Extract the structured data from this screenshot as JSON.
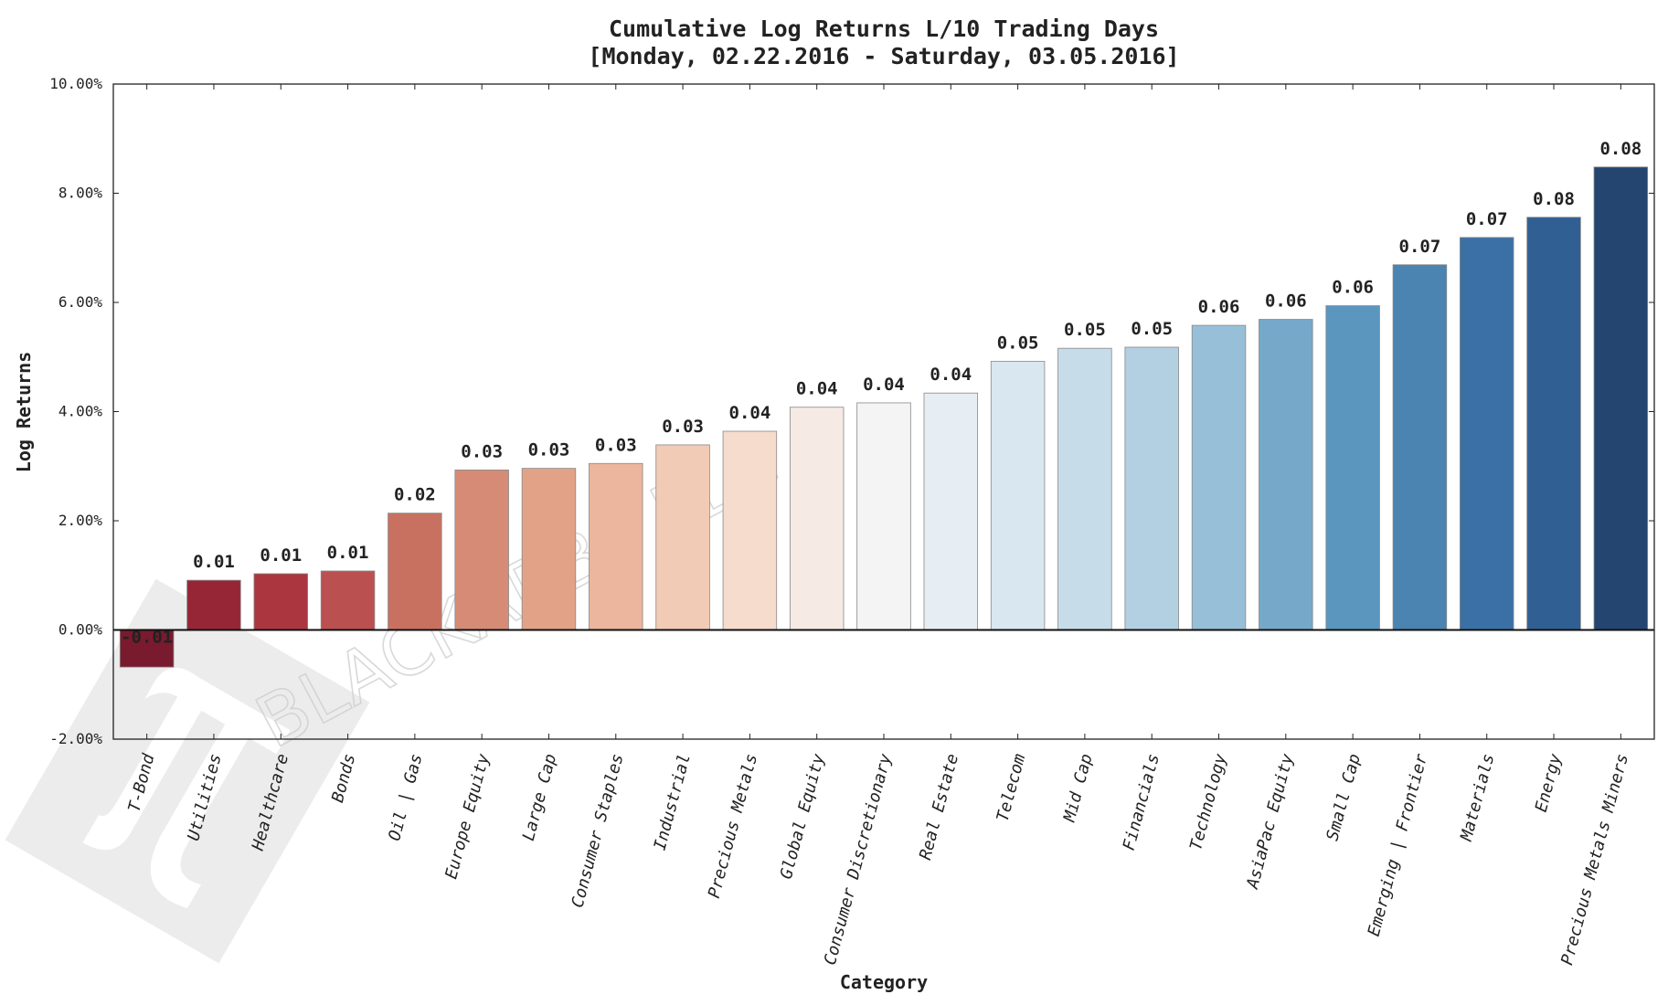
{
  "chart_data": {
    "type": "bar",
    "title": "Cumulative Log Returns L/10 Trading Days",
    "subtitle": "[Monday, 02.22.2016 - Saturday, 03.05.2016]",
    "xlabel": "Category",
    "ylabel": "Log Returns",
    "ylim": [
      -0.02,
      0.1
    ],
    "yticks": [
      -0.02,
      0.0,
      0.02,
      0.04,
      0.06,
      0.08,
      0.1
    ],
    "ytick_labels": [
      "-2.00%",
      "0.00%",
      "2.00%",
      "4.00%",
      "6.00%",
      "8.00%",
      "10.00%"
    ],
    "grid": false,
    "categories": [
      "T-Bond",
      "Utilities",
      "Healthcare",
      "Bonds",
      "Oil | Gas",
      "Europe Equity",
      "Large Cap",
      "Consumer Staples",
      "Industrial",
      "Precious Metals",
      "Global Equity",
      "Consumer Discretionary",
      "Real Estate",
      "Telecom",
      "Mid Cap",
      "Financials",
      "Technology",
      "AsiaPac Equity",
      "Small Cap",
      "Emerging | Frontier",
      "Materials",
      "Energy",
      "Precious Metals Miners"
    ],
    "values": [
      -0.0068,
      0.0091,
      0.0103,
      0.0108,
      0.0214,
      0.0293,
      0.0296,
      0.0305,
      0.0339,
      0.0364,
      0.0408,
      0.0416,
      0.0434,
      0.0492,
      0.0516,
      0.0518,
      0.0558,
      0.0569,
      0.0594,
      0.0669,
      0.0719,
      0.0756,
      0.0848
    ],
    "value_labels": [
      "-0.01",
      "0.01",
      "0.01",
      "0.01",
      "0.02",
      "0.03",
      "0.03",
      "0.03",
      "0.03",
      "0.04",
      "0.04",
      "0.04",
      "0.04",
      "0.05",
      "0.05",
      "0.05",
      "0.06",
      "0.06",
      "0.06",
      "0.07",
      "0.07",
      "0.08",
      "0.08"
    ],
    "colors": [
      "#7a1a2e",
      "#962636",
      "#ab3640",
      "#bb5050",
      "#c97161",
      "#d68b76",
      "#e2a287",
      "#ebb69d",
      "#f2cbb6",
      "#f6dccc",
      "#f6eae5",
      "#f4f4f4",
      "#e7eef3",
      "#d9e7f0",
      "#c6dde9",
      "#b2d0e1",
      "#97c0d8",
      "#76a9c9",
      "#5b96bf",
      "#4b83b1",
      "#3a70a5",
      "#305f93",
      "#234570"
    ]
  },
  "watermark": {
    "text": "BLACKARBS LLC",
    "logo_icon": "pi-logo-icon"
  }
}
